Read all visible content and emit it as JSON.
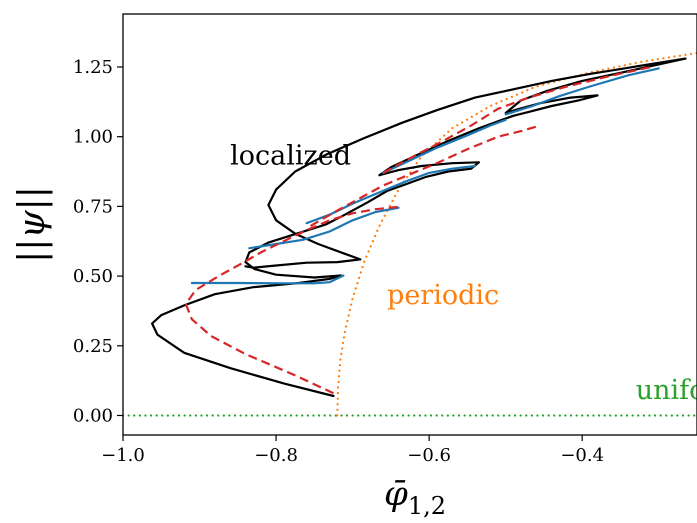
{
  "chart_data": {
    "type": "line",
    "xlabel": "φ̄",
    "xlabel_sub": "1,2",
    "ylabel": "||ψ||",
    "xlim": [
      -1.0,
      -0.25
    ],
    "ylim": [
      -0.07,
      1.44
    ],
    "xticks": [
      -1.0,
      -0.8,
      -0.6,
      -0.4
    ],
    "xtick_labels": [
      "−1.0",
      "−0.8",
      "−0.6",
      "−0.4"
    ],
    "yticks": [
      0.0,
      0.25,
      0.5,
      0.75,
      1.0,
      1.25
    ],
    "ytick_labels": [
      "0.00",
      "0.25",
      "0.50",
      "0.75",
      "1.00",
      "1.25"
    ],
    "grid": false,
    "annotations": [
      {
        "text": "localized",
        "x": -0.86,
        "y": 0.9,
        "color": "#000000"
      },
      {
        "text": "periodic",
        "x": -0.655,
        "y": 0.4,
        "color": "#ff7f0e"
      },
      {
        "text": "uniform",
        "x": -0.33,
        "y": 0.06,
        "color": "#2ca02c"
      }
    ],
    "series": [
      {
        "style": "dotted",
        "color": "#2ca02c",
        "width": 2.2,
        "points": [
          [
            -1.0,
            0.0
          ],
          [
            -0.25,
            0.0
          ]
        ]
      },
      {
        "style": "dotted",
        "color": "#ff7f0e",
        "width": 2.2,
        "points": [
          [
            -0.72,
            0.0
          ],
          [
            -0.719,
            0.1
          ],
          [
            -0.716,
            0.2
          ],
          [
            -0.71,
            0.3
          ],
          [
            -0.7,
            0.42
          ],
          [
            -0.685,
            0.55
          ],
          [
            -0.665,
            0.68
          ],
          [
            -0.64,
            0.81
          ],
          [
            -0.61,
            0.93
          ],
          [
            -0.57,
            1.03
          ],
          [
            -0.52,
            1.11
          ],
          [
            -0.46,
            1.18
          ],
          [
            -0.39,
            1.23
          ],
          [
            -0.32,
            1.27
          ],
          [
            -0.25,
            1.3
          ]
        ]
      },
      {
        "style": "solid",
        "color": "#000000",
        "width": 2.2,
        "points": [
          [
            -0.725,
            0.07
          ],
          [
            -0.79,
            0.115
          ],
          [
            -0.86,
            0.17
          ],
          [
            -0.92,
            0.225
          ],
          [
            -0.955,
            0.29
          ],
          [
            -0.962,
            0.33
          ],
          [
            -0.95,
            0.36
          ],
          [
            -0.92,
            0.395
          ],
          [
            -0.88,
            0.435
          ],
          [
            -0.83,
            0.46
          ],
          [
            -0.77,
            0.475
          ],
          [
            -0.73,
            0.49
          ],
          [
            -0.715,
            0.502
          ],
          [
            -0.75,
            0.495
          ],
          [
            -0.8,
            0.505
          ],
          [
            -0.828,
            0.525
          ],
          [
            -0.84,
            0.55
          ],
          [
            -0.835,
            0.585
          ],
          [
            -0.81,
            0.62
          ],
          [
            -0.77,
            0.655
          ],
          [
            -0.735,
            0.685
          ],
          [
            -0.71,
            0.72
          ],
          [
            -0.68,
            0.765
          ],
          [
            -0.655,
            0.805
          ],
          [
            -0.63,
            0.83
          ],
          [
            -0.605,
            0.855
          ],
          [
            -0.575,
            0.875
          ],
          [
            -0.545,
            0.885
          ],
          [
            -0.535,
            0.908
          ],
          [
            -0.57,
            0.905
          ],
          [
            -0.61,
            0.895
          ],
          [
            -0.64,
            0.88
          ],
          [
            -0.665,
            0.862
          ],
          [
            -0.65,
            0.89
          ],
          [
            -0.615,
            0.935
          ],
          [
            -0.575,
            0.985
          ],
          [
            -0.535,
            1.03
          ],
          [
            -0.505,
            1.06
          ],
          [
            -0.49,
            1.075
          ],
          [
            -0.468,
            1.09
          ],
          [
            -0.44,
            1.11
          ],
          [
            -0.405,
            1.13
          ],
          [
            -0.38,
            1.148
          ],
          [
            -0.415,
            1.14
          ],
          [
            -0.455,
            1.12
          ],
          [
            -0.485,
            1.098
          ],
          [
            -0.5,
            1.085
          ],
          [
            -0.48,
            1.13
          ],
          [
            -0.445,
            1.165
          ],
          [
            -0.4,
            1.2
          ],
          [
            -0.34,
            1.235
          ],
          [
            -0.265,
            1.28
          ],
          [
            -0.3,
            1.265
          ],
          [
            -0.345,
            1.245
          ],
          [
            -0.39,
            1.225
          ],
          [
            -0.44,
            1.2
          ],
          [
            -0.49,
            1.17
          ],
          [
            -0.54,
            1.14
          ],
          [
            -0.59,
            1.095
          ],
          [
            -0.635,
            1.05
          ],
          [
            -0.685,
            0.995
          ],
          [
            -0.735,
            0.935
          ],
          [
            -0.775,
            0.875
          ],
          [
            -0.8,
            0.81
          ],
          [
            -0.81,
            0.755
          ],
          [
            -0.8,
            0.7
          ],
          [
            -0.775,
            0.652
          ],
          [
            -0.745,
            0.615
          ],
          [
            -0.71,
            0.58
          ],
          [
            -0.69,
            0.56
          ],
          [
            -0.72,
            0.55
          ],
          [
            -0.76,
            0.548
          ],
          [
            -0.8,
            0.538
          ],
          [
            -0.83,
            0.53
          ],
          [
            -0.84,
            0.535
          ]
        ]
      },
      {
        "style": "solid",
        "color": "#1f77b4",
        "width": 2.2,
        "points": [
          [
            -0.91,
            0.475
          ],
          [
            -0.85,
            0.475
          ],
          [
            -0.79,
            0.474
          ],
          [
            -0.75,
            0.474
          ],
          [
            -0.73,
            0.478
          ],
          [
            -0.712,
            0.502
          ]
        ]
      },
      {
        "style": "solid",
        "color": "#1f77b4",
        "width": 2.2,
        "points": [
          [
            -0.835,
            0.6
          ],
          [
            -0.8,
            0.615
          ],
          [
            -0.765,
            0.63
          ],
          [
            -0.73,
            0.66
          ],
          [
            -0.7,
            0.7
          ],
          [
            -0.67,
            0.73
          ],
          [
            -0.64,
            0.745
          ]
        ]
      },
      {
        "style": "solid",
        "color": "#1f77b4",
        "width": 2.2,
        "points": [
          [
            -0.76,
            0.69
          ],
          [
            -0.73,
            0.72
          ],
          [
            -0.7,
            0.76
          ],
          [
            -0.665,
            0.8
          ],
          [
            -0.63,
            0.84
          ],
          [
            -0.6,
            0.87
          ],
          [
            -0.57,
            0.885
          ],
          [
            -0.54,
            0.895
          ]
        ]
      },
      {
        "style": "solid",
        "color": "#1f77b4",
        "width": 2.2,
        "points": [
          [
            -0.66,
            0.87
          ],
          [
            -0.625,
            0.915
          ],
          [
            -0.59,
            0.96
          ],
          [
            -0.55,
            1.005
          ],
          [
            -0.52,
            1.04
          ],
          [
            -0.5,
            1.06
          ]
        ]
      },
      {
        "style": "solid",
        "color": "#1f77b4",
        "width": 2.2,
        "points": [
          [
            -0.5,
            1.08
          ],
          [
            -0.465,
            1.11
          ],
          [
            -0.43,
            1.145
          ],
          [
            -0.39,
            1.18
          ],
          [
            -0.34,
            1.22
          ],
          [
            -0.3,
            1.245
          ]
        ]
      },
      {
        "style": "dashed",
        "color": "#d62728",
        "width": 2.2,
        "points": [
          [
            -0.725,
            0.08
          ],
          [
            -0.78,
            0.15
          ],
          [
            -0.84,
            0.22
          ],
          [
            -0.885,
            0.285
          ],
          [
            -0.91,
            0.345
          ],
          [
            -0.918,
            0.4
          ],
          [
            -0.905,
            0.45
          ],
          [
            -0.875,
            0.5
          ],
          [
            -0.845,
            0.545
          ],
          [
            -0.82,
            0.585
          ],
          [
            -0.79,
            0.625
          ],
          [
            -0.76,
            0.665
          ],
          [
            -0.73,
            0.7
          ],
          [
            -0.7,
            0.725
          ],
          [
            -0.67,
            0.74
          ],
          [
            -0.64,
            0.748
          ]
        ]
      },
      {
        "style": "dashed",
        "color": "#d62728",
        "width": 2.2,
        "points": [
          [
            -0.755,
            0.68
          ],
          [
            -0.72,
            0.735
          ],
          [
            -0.69,
            0.78
          ],
          [
            -0.66,
            0.825
          ],
          [
            -0.625,
            0.865
          ],
          [
            -0.59,
            0.905
          ],
          [
            -0.55,
            0.955
          ],
          [
            -0.51,
            1.0
          ],
          [
            -0.48,
            1.02
          ],
          [
            -0.455,
            1.04
          ]
        ]
      },
      {
        "style": "dashed",
        "color": "#d62728",
        "width": 2.2,
        "points": [
          [
            -0.66,
            0.87
          ],
          [
            -0.62,
            0.93
          ],
          [
            -0.585,
            0.98
          ],
          [
            -0.545,
            1.04
          ],
          [
            -0.51,
            1.1
          ],
          [
            -0.47,
            1.14
          ],
          [
            -0.42,
            1.18
          ],
          [
            -0.36,
            1.22
          ],
          [
            -0.31,
            1.25
          ]
        ]
      }
    ]
  }
}
